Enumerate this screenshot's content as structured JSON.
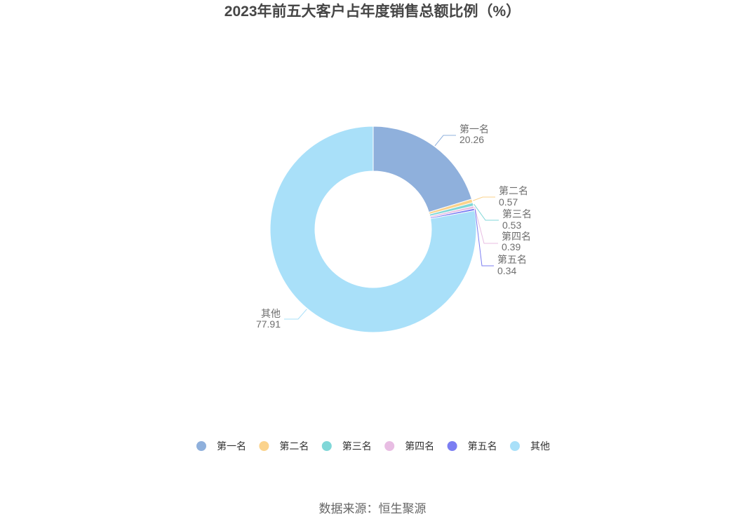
{
  "source": "数据来源：恒生聚源",
  "chart_data": {
    "type": "pie",
    "donut": true,
    "title": "2023年前五大客户占年度销售总额比例（%）",
    "categories": [
      "第一名",
      "第二名",
      "第三名",
      "第四名",
      "第五名",
      "其他"
    ],
    "values": [
      20.26,
      0.57,
      0.53,
      0.39,
      0.34,
      77.91
    ],
    "colors": [
      "#8fb0dc",
      "#fbd38c",
      "#80d7d8",
      "#e8bde3",
      "#7b7ef2",
      "#a9e0f9"
    ],
    "legend": {
      "position": "bottom"
    }
  }
}
